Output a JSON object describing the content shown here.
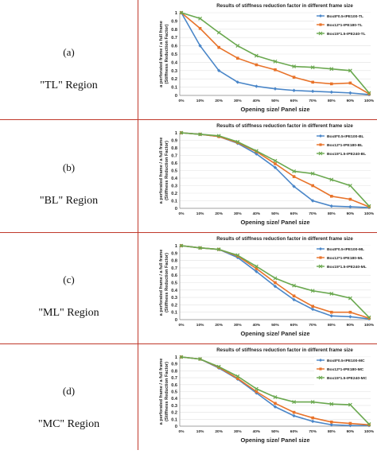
{
  "rows": [
    {
      "letter": "(a)",
      "region": "\"TL\" Region",
      "chart_data": {
        "type": "line",
        "title": "Results of stiffness reduction factor in different frame size",
        "xlabel": "Opening size/ Panel size",
        "ylabel_line1": "a perforated frame / a full frame",
        "ylabel_line2": "(Stiffness Reduction Factor)",
        "categories": [
          "0%",
          "10%",
          "20%",
          "30%",
          "40%",
          "50%",
          "60%",
          "70%",
          "80%",
          "90%",
          "100%"
        ],
        "yticks": [
          "0",
          "0.1",
          "0.2",
          "0.3",
          "0.4",
          "0.5",
          "0.6",
          "0.7",
          "0.8",
          "0.9",
          "1"
        ],
        "ylim": [
          0,
          1
        ],
        "grid": true,
        "legend": "top-right",
        "series": [
          {
            "name": "Box8*0.5-IPE100-TL",
            "marker": "diamond",
            "color": "#4a86c8",
            "values": [
              1.0,
              0.6,
              0.3,
              0.16,
              0.11,
              0.08,
              0.06,
              0.05,
              0.04,
              0.03,
              0.01
            ]
          },
          {
            "name": "Box12*1-IPE180-TL",
            "marker": "square",
            "color": "#e8732a",
            "values": [
              1.0,
              0.81,
              0.58,
              0.45,
              0.37,
              0.31,
              0.22,
              0.16,
              0.14,
              0.15,
              0.02
            ]
          },
          {
            "name": "Box15*1.5-IPE240-TL",
            "marker": "x",
            "color": "#6aa84f",
            "values": [
              1.0,
              0.93,
              0.76,
              0.6,
              0.48,
              0.41,
              0.35,
              0.34,
              0.32,
              0.3,
              0.03
            ]
          }
        ]
      }
    },
    {
      "letter": "(b)",
      "region": "\"BL\" Region",
      "chart_data": {
        "type": "line",
        "title": "Results of stiffness reduction factor in different frame size",
        "xlabel": "Opening size/ Panel size",
        "ylabel_line1": "a perforated frame / a full frame",
        "ylabel_line2": "(Stiffness Reduction Factor)",
        "categories": [
          "0%",
          "10%",
          "20%",
          "30%",
          "40%",
          "50%",
          "60%",
          "70%",
          "80%",
          "90%",
          "100%"
        ],
        "yticks": [
          "0",
          "0.1",
          "0.2",
          "0.3",
          "0.4",
          "0.5",
          "0.6",
          "0.7",
          "0.8",
          "0.9",
          "1"
        ],
        "ylim": [
          0,
          1
        ],
        "grid": true,
        "legend": "top-right",
        "series": [
          {
            "name": "Box8*0.5-IPE100-BL",
            "marker": "diamond",
            "color": "#4a86c8",
            "values": [
              1.0,
              0.98,
              0.95,
              0.86,
              0.72,
              0.54,
              0.29,
              0.1,
              0.03,
              0.02,
              0.01
            ]
          },
          {
            "name": "Box12*1-IPE180-BL",
            "marker": "square",
            "color": "#e8732a",
            "values": [
              1.0,
              0.98,
              0.95,
              0.87,
              0.75,
              0.59,
              0.42,
              0.3,
              0.16,
              0.12,
              0.02
            ]
          },
          {
            "name": "Box15*1.5-IPE240-BL",
            "marker": "x",
            "color": "#6aa84f",
            "values": [
              1.0,
              0.98,
              0.96,
              0.88,
              0.76,
              0.63,
              0.49,
              0.46,
              0.38,
              0.3,
              0.03
            ]
          }
        ]
      }
    },
    {
      "letter": "(c)",
      "region": "\"ML\" Region",
      "chart_data": {
        "type": "line",
        "title": "Results of stiffness reduction factor in different frame size",
        "xlabel": "Opening size/ Panel size",
        "ylabel_line1": "a perforated frame / a full frame",
        "ylabel_line2": "(Stiffness Reduction Factor)",
        "categories": [
          "0%",
          "10%",
          "20%",
          "30%",
          "40%",
          "50%",
          "60%",
          "70%",
          "80%",
          "90%",
          "100%"
        ],
        "yticks": [
          "0",
          "0.1",
          "0.2",
          "0.3",
          "0.4",
          "0.5",
          "0.6",
          "0.7",
          "0.8",
          "0.9",
          "1"
        ],
        "ylim": [
          0,
          1
        ],
        "grid": true,
        "legend": "top-right",
        "series": [
          {
            "name": "Box8*0.5-IPE100-ML",
            "marker": "diamond",
            "color": "#4a86c8",
            "values": [
              1.0,
              0.97,
              0.95,
              0.84,
              0.65,
              0.45,
              0.27,
              0.14,
              0.05,
              0.04,
              0.01
            ]
          },
          {
            "name": "Box12*1-IPE180-ML",
            "marker": "square",
            "color": "#e8732a",
            "values": [
              1.0,
              0.97,
              0.95,
              0.86,
              0.69,
              0.5,
              0.32,
              0.18,
              0.1,
              0.1,
              0.02
            ]
          },
          {
            "name": "Box15*1.5-IPE240-ML",
            "marker": "x",
            "color": "#6aa84f",
            "values": [
              1.0,
              0.97,
              0.95,
              0.87,
              0.72,
              0.56,
              0.46,
              0.39,
              0.35,
              0.29,
              0.03
            ]
          }
        ]
      }
    },
    {
      "letter": "(d)",
      "region": "\"MC\" Region",
      "chart_data": {
        "type": "line",
        "title": "Results of stiffness reduction factor in different frame size",
        "xlabel": "Opening size/ Panel size",
        "ylabel_line1": "a perforated frame / a full frame",
        "ylabel_line2": "(Stiffness Reduction Factor)",
        "categories": [
          "0%",
          "10%",
          "20%",
          "30%",
          "40%",
          "50%",
          "60%",
          "70%",
          "80%",
          "90%",
          "100%"
        ],
        "yticks": [
          "0",
          "0.1",
          "0.2",
          "0.3",
          "0.4",
          "0.5",
          "0.6",
          "0.7",
          "0.8",
          "0.9",
          "1"
        ],
        "ylim": [
          0,
          1
        ],
        "grid": true,
        "legend": "top-right",
        "series": [
          {
            "name": "Box8*0.5-IPE100-MC",
            "marker": "diamond",
            "color": "#4a86c8",
            "values": [
              1.0,
              0.97,
              0.84,
              0.68,
              0.48,
              0.28,
              0.15,
              0.07,
              0.02,
              0.01,
              0.01
            ]
          },
          {
            "name": "Box12*1-IPE180-MC",
            "marker": "square",
            "color": "#e8732a",
            "values": [
              1.0,
              0.97,
              0.85,
              0.69,
              0.5,
              0.33,
              0.2,
              0.12,
              0.06,
              0.04,
              0.02
            ]
          },
          {
            "name": "Box15*1.5-IPE240-MC",
            "marker": "x",
            "color": "#6aa84f",
            "values": [
              1.0,
              0.97,
              0.86,
              0.72,
              0.54,
              0.42,
              0.35,
              0.35,
              0.32,
              0.31,
              0.03
            ]
          }
        ]
      }
    }
  ]
}
